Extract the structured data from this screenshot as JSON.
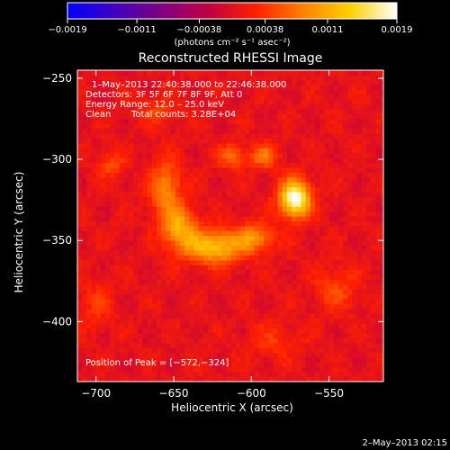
{
  "chart_data": {
    "type": "heatmap",
    "title": "Reconstructed RHESSI Image",
    "xlabel": "Heliocentric X (arcsec)",
    "ylabel": "Heliocentric Y (arcsec)",
    "xlim": [
      -712,
      -515
    ],
    "ylim": [
      -437,
      -245
    ],
    "x_ticks": [
      -700,
      -650,
      -600,
      -550
    ],
    "y_ticks": [
      -250,
      -300,
      -350,
      -400
    ],
    "x_tick_labels": [
      "−700",
      "−650",
      "−600",
      "−550"
    ],
    "y_tick_labels": [
      "−250",
      "−300",
      "−350",
      "−400"
    ],
    "colorbar": {
      "range": [
        -0.0019,
        0.0019
      ],
      "ticks": [
        -0.0019,
        -0.0011,
        -0.00038,
        0.00038,
        0.0011,
        0.0019
      ],
      "tick_labels": [
        "−0.0019",
        "−0.0011",
        "−0.00038",
        "0.00038",
        "0.0011",
        "0.0019"
      ],
      "unit_label": "(photons cm⁻² s⁻¹ asec⁻²)",
      "colormap": [
        "#0000ff",
        "#4000c0",
        "#800080",
        "#c00040",
        "#ff2000",
        "#ff8000",
        "#ffd000",
        "#ffffff"
      ]
    },
    "annotations": {
      "time_range": "1–May–2013 22:40:38.000 to 22:46:38.000",
      "detectors": "Detectors: 3F 5F 6F 7F 8F 9F, Att 0",
      "energy": "Energy Range: 12.0 – 25.0 keV",
      "clean_label": "Clean",
      "total_counts": "Total counts: 3.28E+04",
      "peak": "Position of Peak = [−572,−324]"
    },
    "peak_position": [
      -572,
      -324
    ],
    "sources": [
      {
        "x": -572,
        "y": -324,
        "sx": 7,
        "sy": 8,
        "amplitude": 0.0019
      },
      {
        "x": -624,
        "y": -354,
        "sx": 13,
        "sy": 7,
        "amplitude": 0.00125
      },
      {
        "x": -646,
        "y": -342,
        "sx": 8,
        "sy": 9,
        "amplitude": 0.001
      },
      {
        "x": -598,
        "y": -348,
        "sx": 9,
        "sy": 6,
        "amplitude": 0.0008
      },
      {
        "x": -592,
        "y": -298,
        "sx": 6,
        "sy": 5,
        "amplitude": 0.0007
      },
      {
        "x": -612,
        "y": -298,
        "sx": 6,
        "sy": 5,
        "amplitude": 0.00065
      },
      {
        "x": -655,
        "y": -318,
        "sx": 7,
        "sy": 12,
        "amplitude": 0.0008
      },
      {
        "x": -690,
        "y": -303,
        "sx": 6,
        "sy": 6,
        "amplitude": 0.00045
      },
      {
        "x": -660,
        "y": -270,
        "sx": 8,
        "sy": 6,
        "amplitude": 0.0004
      },
      {
        "x": -545,
        "y": -380,
        "sx": 10,
        "sy": 10,
        "amplitude": 0.0004
      },
      {
        "x": -585,
        "y": -412,
        "sx": 12,
        "sy": 8,
        "amplitude": 0.0003
      },
      {
        "x": -700,
        "y": -390,
        "sx": 8,
        "sy": 10,
        "amplitude": 0.0003
      }
    ]
  },
  "footer": {
    "date_stamp": "2–May–2013 02:15"
  }
}
